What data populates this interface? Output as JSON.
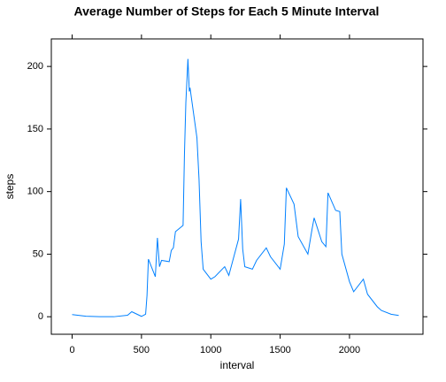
{
  "chart_data": {
    "type": "line",
    "title": "Average Number of Steps for Each 5 Minute Interval",
    "x_label": "interval",
    "y_label": "steps",
    "x": [
      0,
      100,
      200,
      300,
      400,
      430,
      500,
      530,
      540,
      550,
      600,
      615,
      630,
      645,
      700,
      715,
      730,
      745,
      800,
      810,
      820,
      835,
      845,
      850,
      900,
      915,
      930,
      945,
      1000,
      1030,
      1100,
      1130,
      1200,
      1215,
      1230,
      1245,
      1300,
      1330,
      1400,
      1430,
      1500,
      1530,
      1545,
      1600,
      1630,
      1700,
      1730,
      1745,
      1800,
      1830,
      1845,
      1900,
      1930,
      1945,
      2000,
      2030,
      2100,
      2130,
      2200,
      2230,
      2300,
      2355
    ],
    "series": [
      {
        "name": "steps",
        "color": "#0080ff",
        "values": [
          1.7,
          0.4,
          0,
          0,
          1.2,
          4,
          0.3,
          2,
          17,
          46,
          32,
          63,
          40,
          45,
          44,
          53,
          55,
          68,
          73,
          130,
          171,
          206,
          180,
          183,
          143,
          110,
          60,
          38,
          30,
          32,
          40,
          33,
          62,
          94,
          54,
          40,
          38,
          45,
          55,
          48,
          38,
          58,
          103,
          90,
          64,
          50,
          70,
          79,
          60,
          56,
          99,
          85,
          84,
          50,
          28,
          20,
          30,
          18,
          8,
          5,
          2,
          1
        ]
      }
    ],
    "xlim": [
      -150,
      2530
    ],
    "ylim": [
      -14,
      222
    ],
    "xticks": [
      0,
      500,
      1000,
      1500,
      2000
    ],
    "yticks": [
      0,
      50,
      100,
      150,
      200
    ]
  }
}
